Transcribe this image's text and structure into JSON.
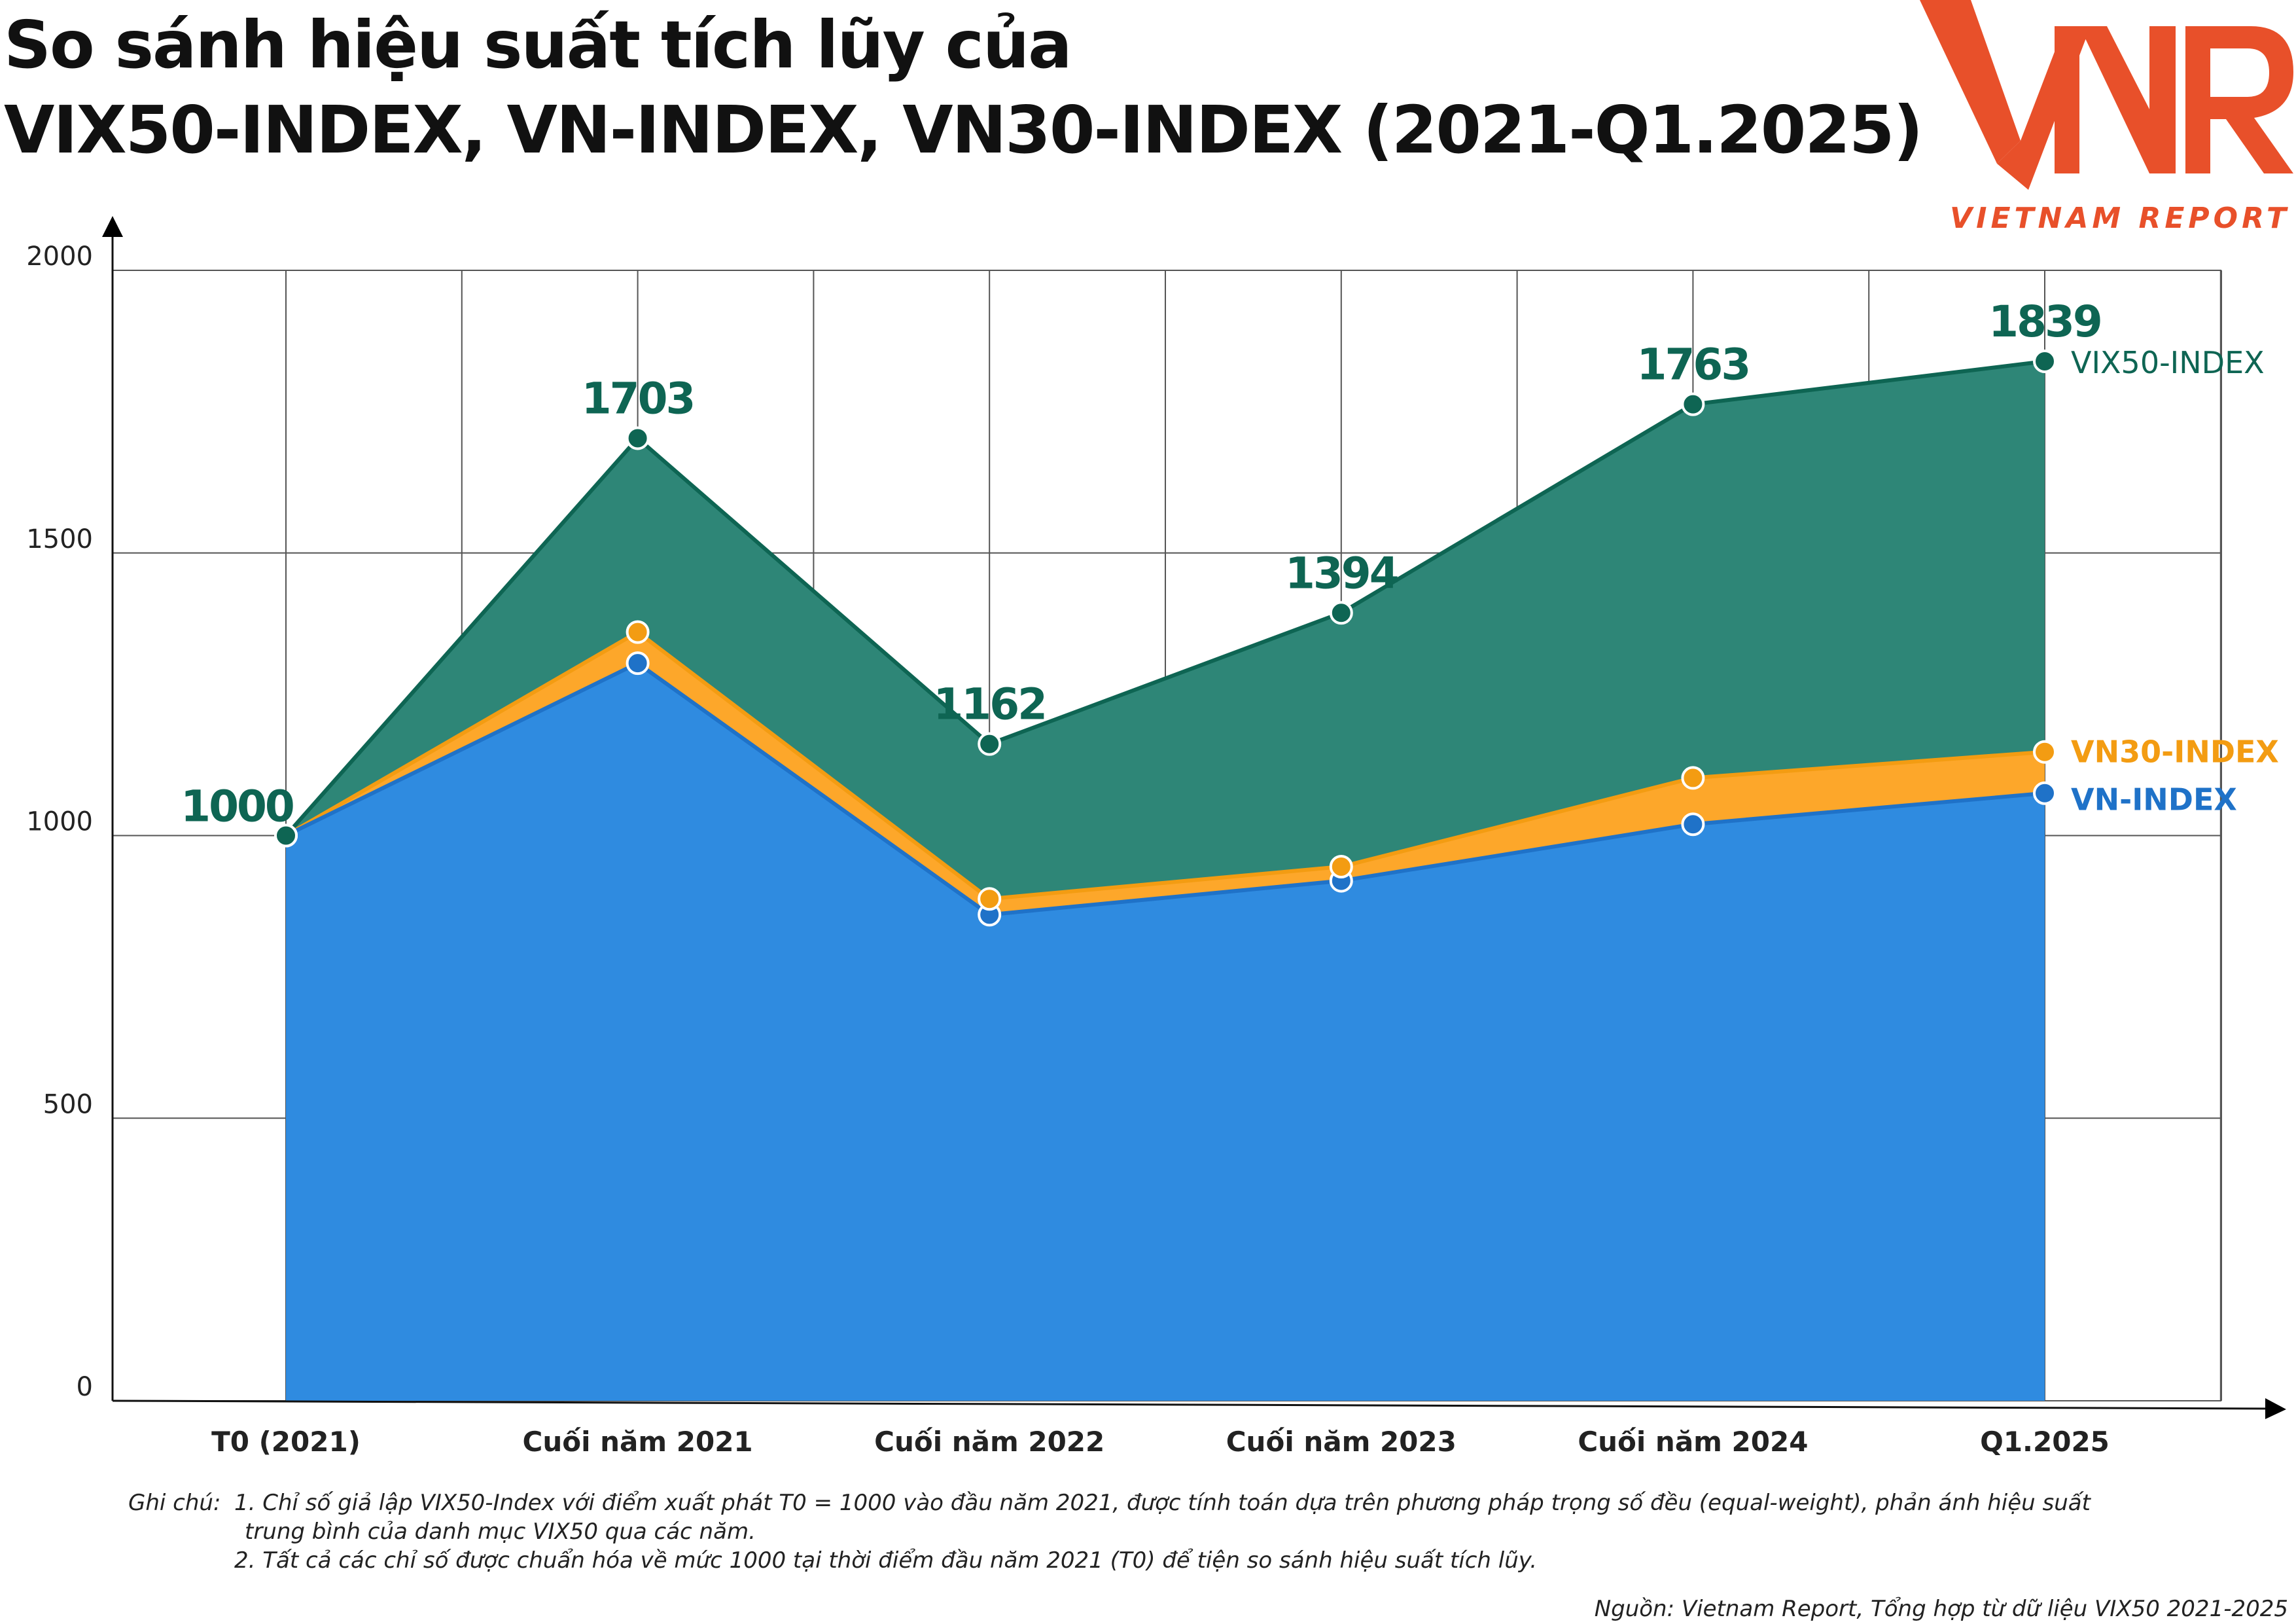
{
  "title": {
    "line1": "So sánh hiệu suất tích lũy của",
    "line2": "VIX50-INDEX, VN-INDEX, VN30-INDEX (2021-Q1.2025)"
  },
  "logo": {
    "mark": "VNR",
    "tagline": "VIETNAM REPORT",
    "color": "#E8502A"
  },
  "chart_data": {
    "type": "area",
    "categories": [
      "T0 (2021)",
      "Cuối năm 2021",
      "Cuối năm 2022",
      "Cuối năm 2023",
      "Cuối năm 2024",
      "Q1.2025"
    ],
    "ylim": [
      0,
      2000
    ],
    "yticks": [
      "0",
      "500",
      "1000",
      "1500",
      "2000"
    ],
    "grid": true,
    "legend": "right-end-labels",
    "series": [
      {
        "name": "VIX50-INDEX",
        "color": "#2E8677",
        "line": "#0E6553",
        "values": [
          1000,
          1703,
          1162,
          1394,
          1763,
          1839
        ],
        "labels": [
          "1000",
          "1703",
          "1162",
          "1394",
          "1763",
          "1839"
        ]
      },
      {
        "name": "VN30-INDEX",
        "color": "#FDA72A",
        "line": "#F39C12",
        "values": [
          1000,
          1360,
          888,
          945,
          1102,
          1148
        ]
      },
      {
        "name": "VN-INDEX",
        "color": "#2F8BE0",
        "line": "#1F72C8",
        "values": [
          1000,
          1305,
          860,
          920,
          1020,
          1075
        ]
      }
    ]
  },
  "notes": {
    "label": "Ghi chú:",
    "line1a": "1.  Chỉ số giả lập VIX50-Index với điểm xuất phát T0 = 1000 vào đầu năm 2021, được tính toán dựa trên phương pháp trọng số đều (equal-weight), phản ánh hiệu suất",
    "line1b": "trung bình của danh mục VIX50 qua các năm.",
    "line2": "2. Tất cả các chỉ số được chuẩn hóa về mức 1000 tại thời điểm đầu năm 2021 (T0) để tiện so sánh hiệu suất tích lũy."
  },
  "source": "Nguồn: Vietnam Report, Tổng hợp từ dữ liệu VIX50 2021-2025"
}
